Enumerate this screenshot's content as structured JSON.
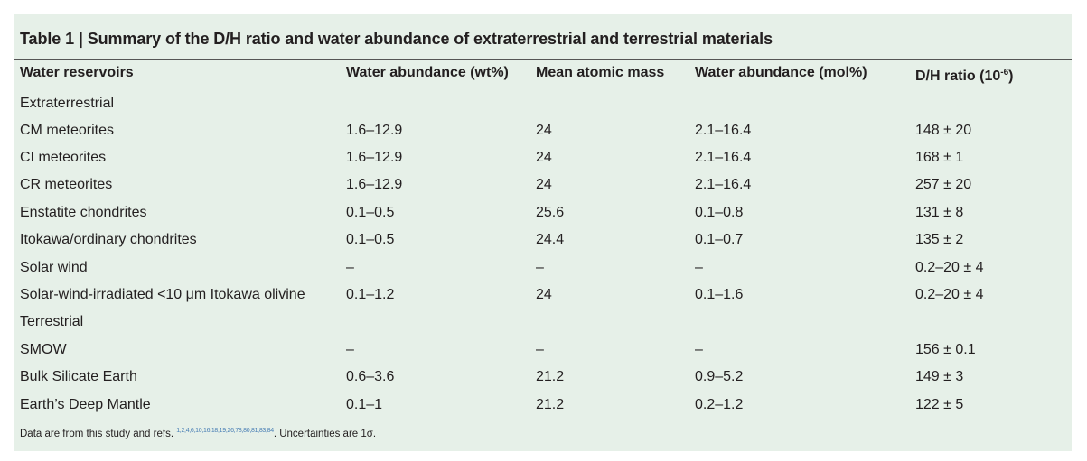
{
  "table": {
    "title_label": "Table 1 |",
    "title_text": " Summary of the D/H ratio and water abundance of extraterrestrial and terrestrial materials",
    "headers": {
      "reservoir": "Water reservoirs",
      "wt": "Water abundance (wt%)",
      "mass": "Mean atomic mass",
      "mol": "Water abundance (mol%)",
      "dh_prefix": "D/H ratio (10",
      "dh_exp": "-6",
      "dh_suffix": ")"
    },
    "rows": [
      {
        "reservoir": "Extraterrestrial",
        "wt": "",
        "mass": "",
        "mol": "",
        "dh": ""
      },
      {
        "reservoir": "CM meteorites",
        "wt": "1.6–12.9",
        "mass": "24",
        "mol": "2.1–16.4",
        "dh": "148 ± 20"
      },
      {
        "reservoir": "CI meteorites",
        "wt": "1.6–12.9",
        "mass": "24",
        "mol": "2.1–16.4",
        "dh": "168 ± 1"
      },
      {
        "reservoir": "CR meteorites",
        "wt": "1.6–12.9",
        "mass": "24",
        "mol": "2.1–16.4",
        "dh": "257 ± 20"
      },
      {
        "reservoir": "Enstatite chondrites",
        "wt": "0.1–0.5",
        "mass": "25.6",
        "mol": "0.1–0.8",
        "dh": "131 ± 8"
      },
      {
        "reservoir": "Itokawa/ordinary chondrites",
        "wt": "0.1–0.5",
        "mass": "24.4",
        "mol": "0.1–0.7",
        "dh": "135 ± 2"
      },
      {
        "reservoir": "Solar wind",
        "wt": "–",
        "mass": "–",
        "mol": "–",
        "dh": "0.2–20 ± 4"
      },
      {
        "reservoir": "Solar-wind-irradiated <10 μm Itokawa olivine",
        "wt": "0.1–1.2",
        "mass": "24",
        "mol": "0.1–1.6",
        "dh": "0.2–20 ± 4"
      },
      {
        "reservoir": "Terrestrial",
        "wt": "",
        "mass": "",
        "mol": "",
        "dh": ""
      },
      {
        "reservoir": "SMOW",
        "wt": "–",
        "mass": "–",
        "mol": "–",
        "dh": "156 ± 0.1"
      },
      {
        "reservoir": "Bulk Silicate Earth",
        "wt": "0.6–3.6",
        "mass": "21.2",
        "mol": "0.9–5.2",
        "dh": "149 ± 3"
      },
      {
        "reservoir": "Earth’s Deep Mantle",
        "wt": "0.1–1",
        "mass": "21.2",
        "mol": "0.2–1.2",
        "dh": "122 ± 5"
      }
    ],
    "footnote": {
      "prefix": "Data are from this study and refs. ",
      "refs": "1,2,4,6,10,16,18,19,26,78,80,81,83,84",
      "suffix": ". Uncertainties are 1σ."
    }
  }
}
